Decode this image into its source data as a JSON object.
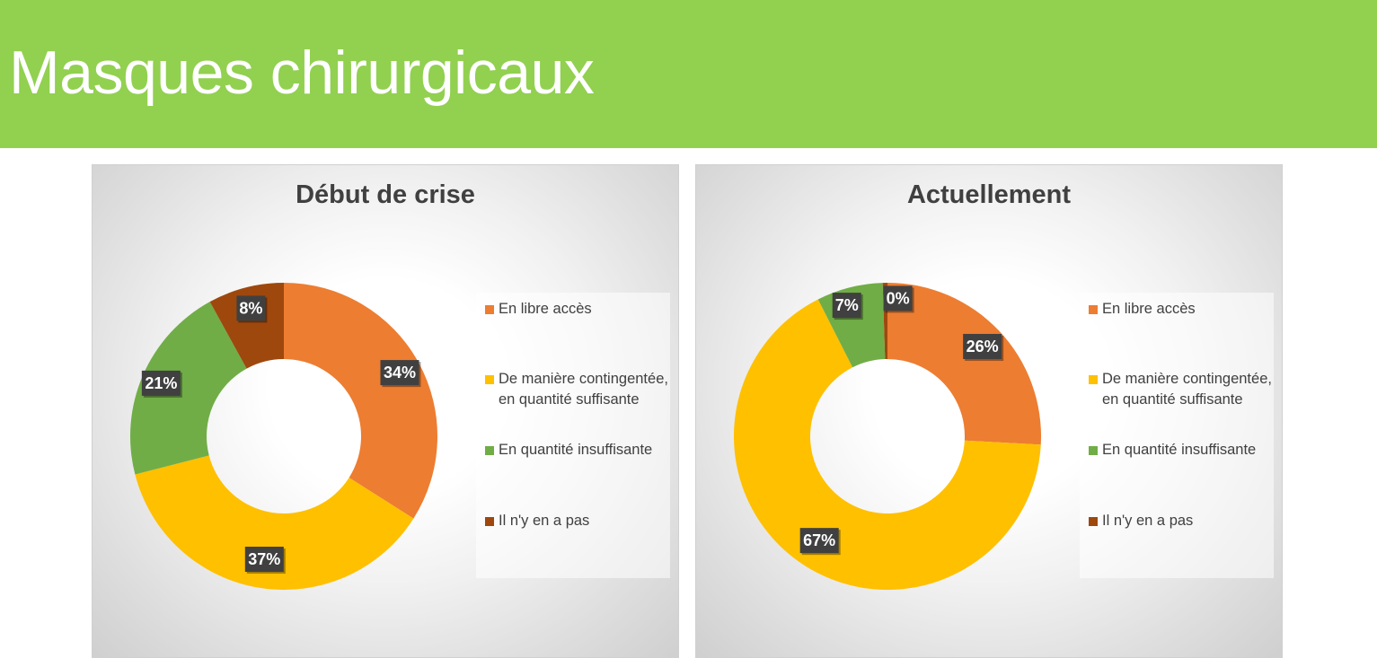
{
  "header": {
    "title": "Masques chirurgicaux",
    "background_color": "#92d050"
  },
  "chart_data": [
    {
      "type": "pie",
      "donut": true,
      "title": "Début de crise",
      "categories": [
        "En libre accès",
        "De manière contingentée, en quantité suffisante",
        "En quantité insuffisante",
        "Il n'y en a pas"
      ],
      "values": [
        34,
        37,
        21,
        8
      ],
      "labels": [
        "34%",
        "37%",
        "21%",
        "8%"
      ],
      "colors": [
        "#ed7d31",
        "#ffc000",
        "#70ad47",
        "#9e480e"
      ],
      "legend": {
        "position": "right",
        "items": [
          "En libre accès",
          "De manière contingentée, en quantité suffisante",
          "En quantité insuffisante",
          "Il n'y en a pas"
        ]
      }
    },
    {
      "type": "pie",
      "donut": true,
      "title": "Actuellement",
      "categories": [
        "En libre accès",
        "De manière contingentée, en quantité suffisante",
        "En quantité insuffisante",
        "Il n'y en a pas"
      ],
      "values": [
        26,
        67,
        7,
        0.5
      ],
      "labels": [
        "26%",
        "67%",
        "7%",
        "0%"
      ],
      "colors": [
        "#ed7d31",
        "#ffc000",
        "#70ad47",
        "#9e480e"
      ],
      "legend": {
        "position": "right",
        "items": [
          "En libre accès",
          "De manière contingentée, en quantité suffisante",
          "En quantité insuffisante",
          "Il n'y en a pas"
        ]
      }
    }
  ]
}
